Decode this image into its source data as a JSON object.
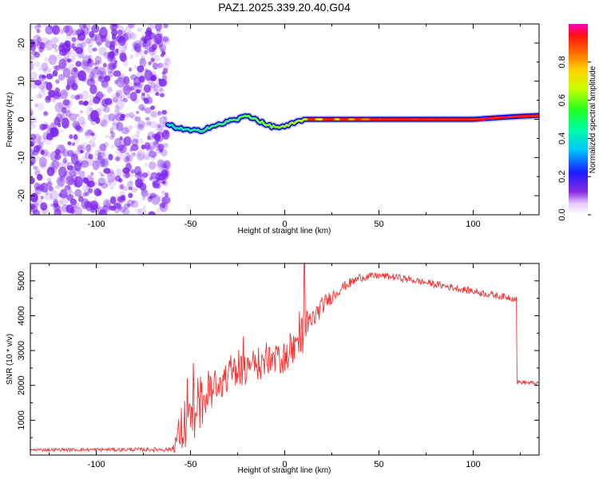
{
  "title": "PAZ1.2025.339.20.40.G04",
  "chart_data": [
    {
      "type": "heatmap",
      "name": "spectrogram",
      "xlabel": "Height of straight line (km)",
      "ylabel": "Frequency (Hz)",
      "xlim": [
        -135,
        135
      ],
      "ylim": [
        -25,
        25
      ],
      "xticks": [
        -100,
        -50,
        0,
        50,
        100
      ],
      "yticks": [
        -20,
        -10,
        0,
        10,
        20
      ],
      "noise_region_x": [
        -135,
        -62
      ],
      "signal_track": {
        "x": [
          -62,
          -55,
          -50,
          -45,
          -40,
          -35,
          -30,
          -25,
          -20,
          -15,
          -10,
          -5,
          0,
          5,
          10,
          20,
          40,
          60,
          80,
          100,
          115,
          125,
          135
        ],
        "freq": [
          -1.5,
          -2.5,
          -3.0,
          -3.0,
          -2.0,
          -1.5,
          -0.5,
          0.0,
          1.0,
          0.0,
          -1.5,
          -2.0,
          -2.0,
          -1.0,
          0.0,
          0.0,
          0.0,
          0.0,
          0.0,
          0.0,
          0.5,
          0.8,
          1.0
        ]
      },
      "colorbar": {
        "label": "Normalized spectral amplitude",
        "ticks": [
          0.0,
          0.2,
          0.4,
          0.6,
          0.8
        ],
        "tick_labels": [
          "0.0",
          "0.2",
          "0.4",
          "0.6",
          "0.8"
        ],
        "range": [
          0,
          1
        ]
      }
    },
    {
      "type": "line",
      "name": "snr",
      "xlabel": "Height of straight line (km)",
      "ylabel": "SNR (10 * v/v)",
      "xlim": [
        -135,
        135
      ],
      "ylim": [
        0,
        5500
      ],
      "xticks": [
        -100,
        -50,
        0,
        50,
        100
      ],
      "yticks": [
        1000,
        2000,
        3000,
        4000,
        5000
      ],
      "color": "#ee3333",
      "envelope": {
        "x": [
          -135,
          -60,
          -55,
          -50,
          -45,
          -40,
          -35,
          -30,
          -25,
          -20,
          -15,
          -10,
          -5,
          0,
          5,
          10,
          15,
          20,
          30,
          40,
          50,
          60,
          70,
          80,
          90,
          100,
          110,
          122,
          123,
          135
        ],
        "mean": [
          150,
          160,
          700,
          1100,
          1500,
          1800,
          2100,
          2300,
          2400,
          2500,
          2600,
          2650,
          2700,
          2800,
          3100,
          3500,
          3900,
          4300,
          4800,
          5100,
          5150,
          5100,
          5000,
          4900,
          4800,
          4700,
          4600,
          4500,
          2100,
          2050
        ],
        "spread": [
          40,
          60,
          700,
          800,
          800,
          700,
          650,
          600,
          550,
          500,
          500,
          450,
          450,
          450,
          500,
          600,
          350,
          250,
          150,
          120,
          100,
          100,
          100,
          100,
          100,
          100,
          100,
          100,
          60,
          60
        ]
      }
    }
  ],
  "colors": {
    "noise": "#7a22ee",
    "line": "#ee3333"
  }
}
